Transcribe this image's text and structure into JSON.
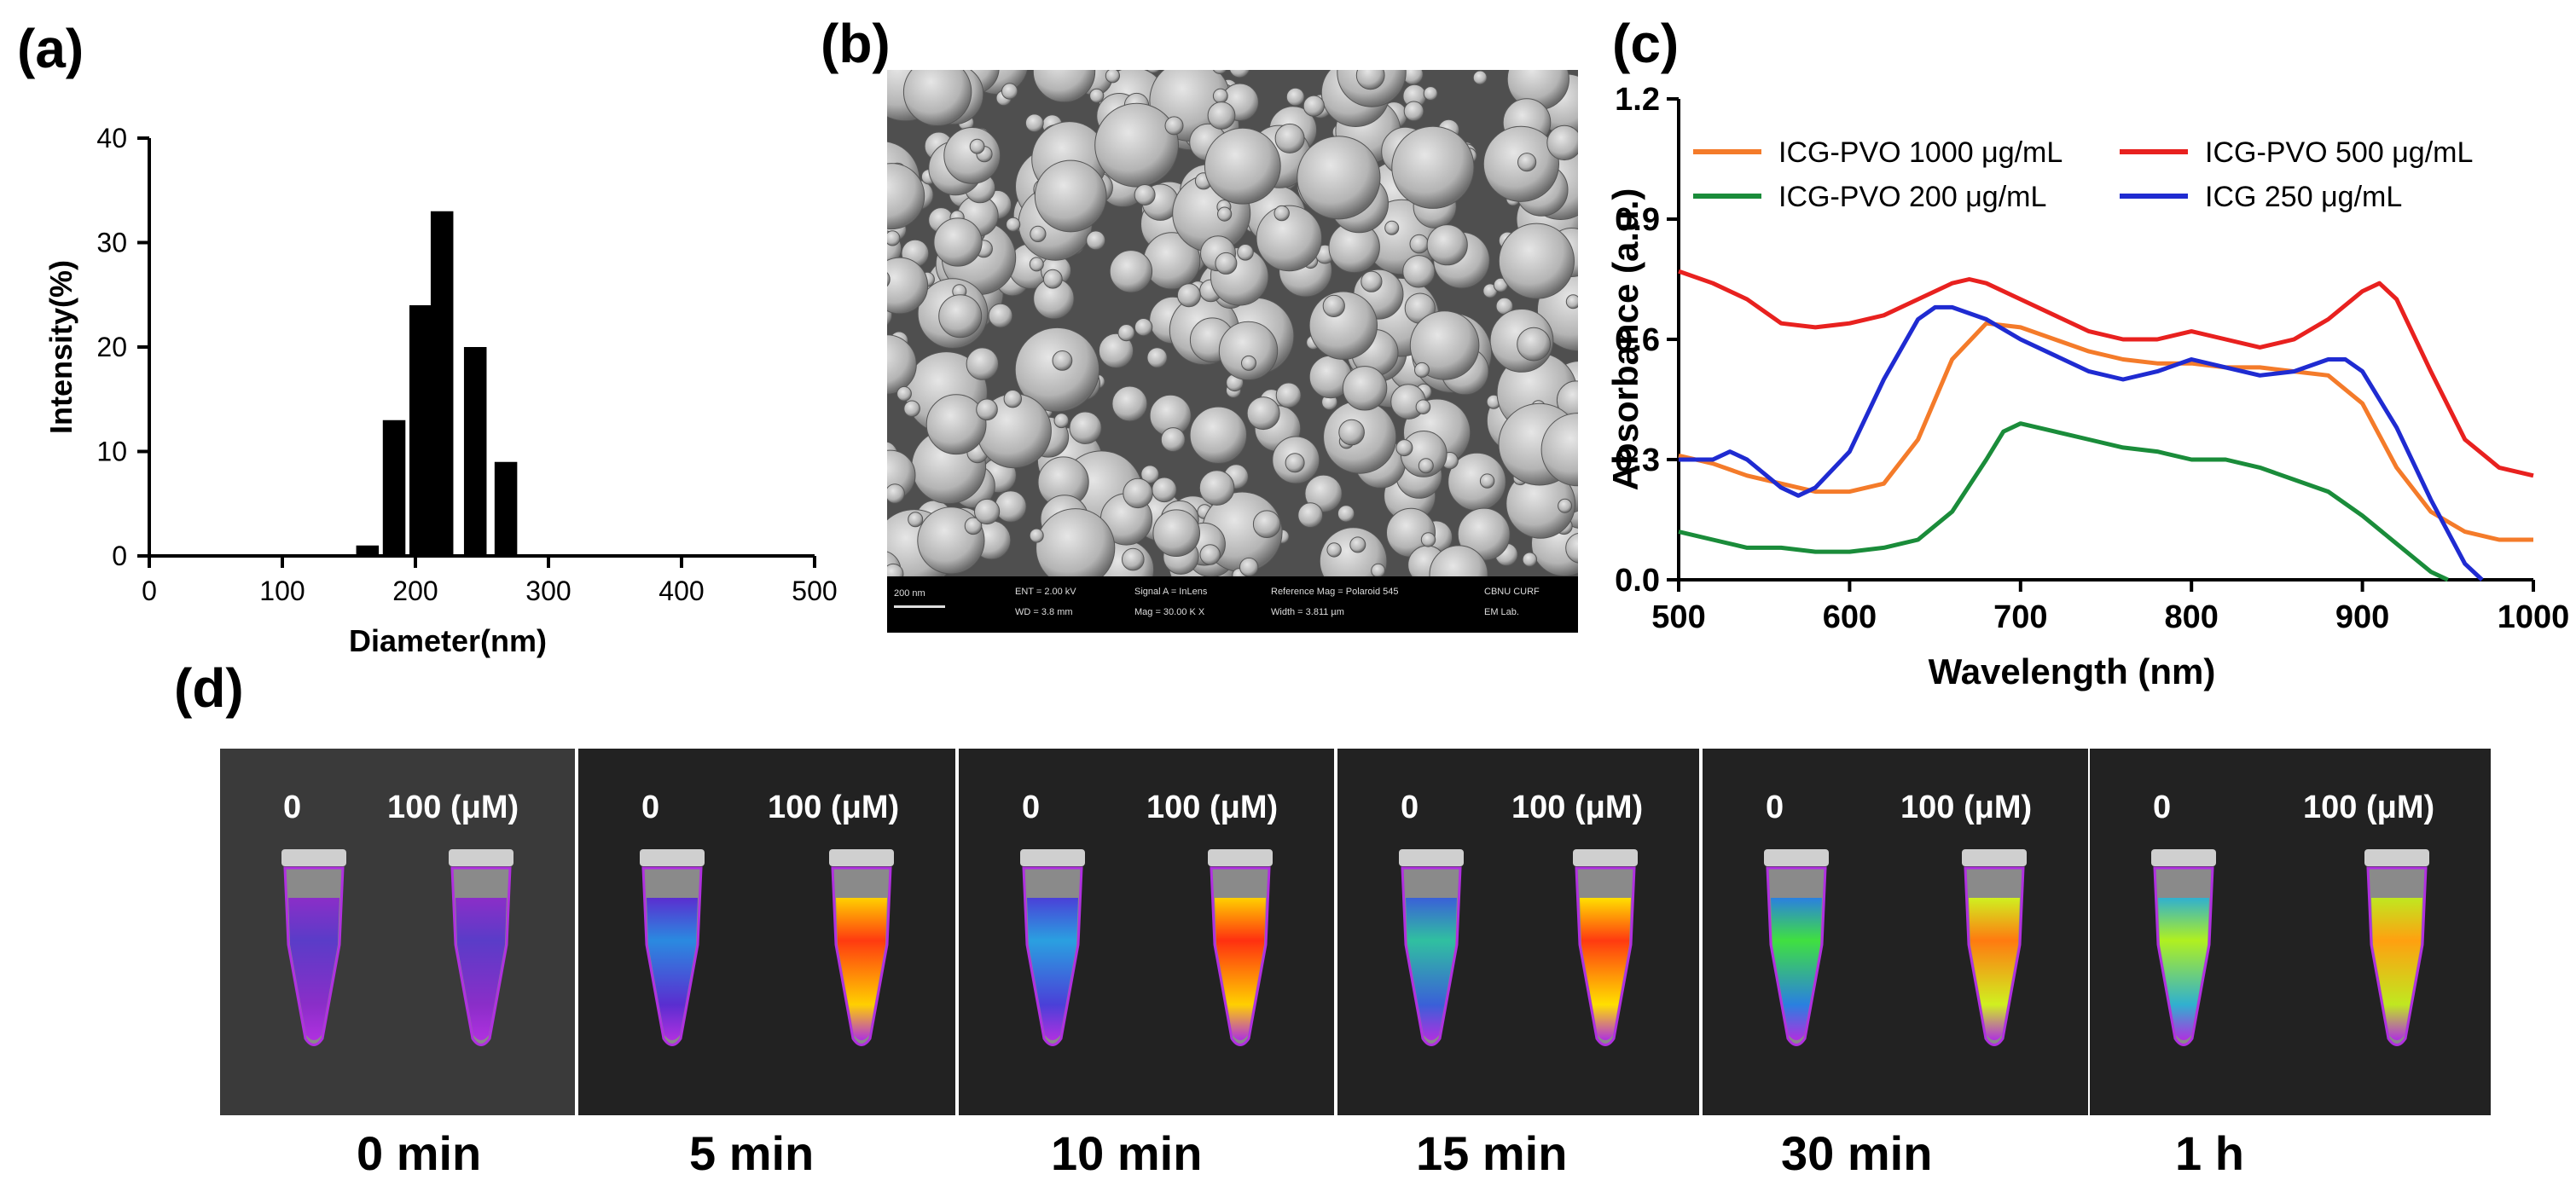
{
  "panels": {
    "a": {
      "label": "(a)"
    },
    "b": {
      "label": "(b)"
    },
    "c": {
      "label": "(c)"
    },
    "d": {
      "label": "(d)"
    }
  },
  "chart_data": [
    {
      "id": "a",
      "type": "bar",
      "xlabel": "Diameter(nm)",
      "ylabel": "Intensity(%)",
      "xlim": [
        0,
        500
      ],
      "ylim": [
        0,
        40
      ],
      "xticks": [
        "0",
        "100",
        "200",
        "300",
        "400",
        "500"
      ],
      "yticks": [
        "0",
        "10",
        "20",
        "30",
        "40"
      ],
      "x": [
        164,
        184,
        204,
        220,
        245,
        268
      ],
      "values": [
        1,
        13,
        24,
        33,
        20,
        9
      ]
    },
    {
      "id": "c",
      "type": "line",
      "xlabel": "Wavelength (nm)",
      "ylabel": "Absorbance (a.u.)",
      "xlim": [
        500,
        1000
      ],
      "ylim": [
        0.0,
        1.2
      ],
      "xticks": [
        "500",
        "600",
        "700",
        "800",
        "900",
        "1000"
      ],
      "yticks": [
        "0.0",
        "0.3",
        "0.6",
        "0.9",
        "1.2"
      ],
      "legend": "top",
      "series": [
        {
          "name": "ICG-PVO 1000 μg/mL",
          "color": "#f47b2a",
          "x": [
            500,
            520,
            540,
            560,
            580,
            600,
            620,
            640,
            660,
            680,
            700,
            720,
            740,
            760,
            780,
            800,
            820,
            840,
            860,
            880,
            900,
            920,
            940,
            960,
            980,
            1000
          ],
          "y": [
            0.31,
            0.29,
            0.26,
            0.24,
            0.22,
            0.22,
            0.24,
            0.35,
            0.55,
            0.64,
            0.63,
            0.6,
            0.57,
            0.55,
            0.54,
            0.54,
            0.53,
            0.53,
            0.52,
            0.51,
            0.44,
            0.28,
            0.17,
            0.12,
            0.1,
            0.1
          ]
        },
        {
          "name": "ICG-PVO 500 μg/mL",
          "color": "#e8211f",
          "x": [
            500,
            520,
            540,
            560,
            580,
            600,
            620,
            640,
            660,
            670,
            680,
            700,
            720,
            740,
            760,
            780,
            800,
            820,
            840,
            860,
            880,
            900,
            910,
            920,
            940,
            960,
            980,
            1000
          ],
          "y": [
            0.77,
            0.74,
            0.7,
            0.64,
            0.63,
            0.64,
            0.66,
            0.7,
            0.74,
            0.75,
            0.74,
            0.7,
            0.66,
            0.62,
            0.6,
            0.6,
            0.62,
            0.6,
            0.58,
            0.6,
            0.65,
            0.72,
            0.74,
            0.7,
            0.52,
            0.35,
            0.28,
            0.26
          ]
        },
        {
          "name": "ICG-PVO 200 μg/mL",
          "color": "#1a8c3a",
          "x": [
            500,
            520,
            540,
            560,
            580,
            600,
            620,
            640,
            660,
            680,
            690,
            700,
            720,
            740,
            760,
            780,
            800,
            820,
            840,
            860,
            880,
            900,
            920,
            940,
            950
          ],
          "y": [
            0.12,
            0.1,
            0.08,
            0.08,
            0.07,
            0.07,
            0.08,
            0.1,
            0.17,
            0.3,
            0.37,
            0.39,
            0.37,
            0.35,
            0.33,
            0.32,
            0.3,
            0.3,
            0.28,
            0.25,
            0.22,
            0.16,
            0.09,
            0.02,
            0.0
          ]
        },
        {
          "name": "ICG 250 μg/mL",
          "color": "#1f2bd1",
          "x": [
            500,
            520,
            530,
            540,
            560,
            570,
            580,
            600,
            620,
            640,
            650,
            660,
            680,
            700,
            720,
            740,
            760,
            780,
            800,
            820,
            840,
            860,
            880,
            890,
            900,
            920,
            940,
            960,
            970
          ],
          "y": [
            0.3,
            0.3,
            0.32,
            0.3,
            0.23,
            0.21,
            0.23,
            0.32,
            0.5,
            0.65,
            0.68,
            0.68,
            0.65,
            0.6,
            0.56,
            0.52,
            0.5,
            0.52,
            0.55,
            0.53,
            0.51,
            0.52,
            0.55,
            0.55,
            0.52,
            0.38,
            0.2,
            0.04,
            0.0
          ]
        }
      ]
    }
  ],
  "sem": {
    "scale_label": "200 nm",
    "info": {
      "ent": "ENT = 2.00 kV",
      "wd": "WD = 3.8 mm",
      "signal": "Signal A = InLens",
      "mag": "Mag = 30.00 K X",
      "refmag": "Reference Mag = Polaroid 545",
      "width": "Width = 3.811 µm",
      "lab1": "CBNU CURF",
      "lab2": "EM Lab."
    }
  },
  "fluorescence": {
    "conc_low": "0",
    "conc_high": "100 (μM)",
    "times": [
      "0 min",
      "5 min",
      "10 min",
      "15 min",
      "30 min",
      "1 h"
    ]
  }
}
